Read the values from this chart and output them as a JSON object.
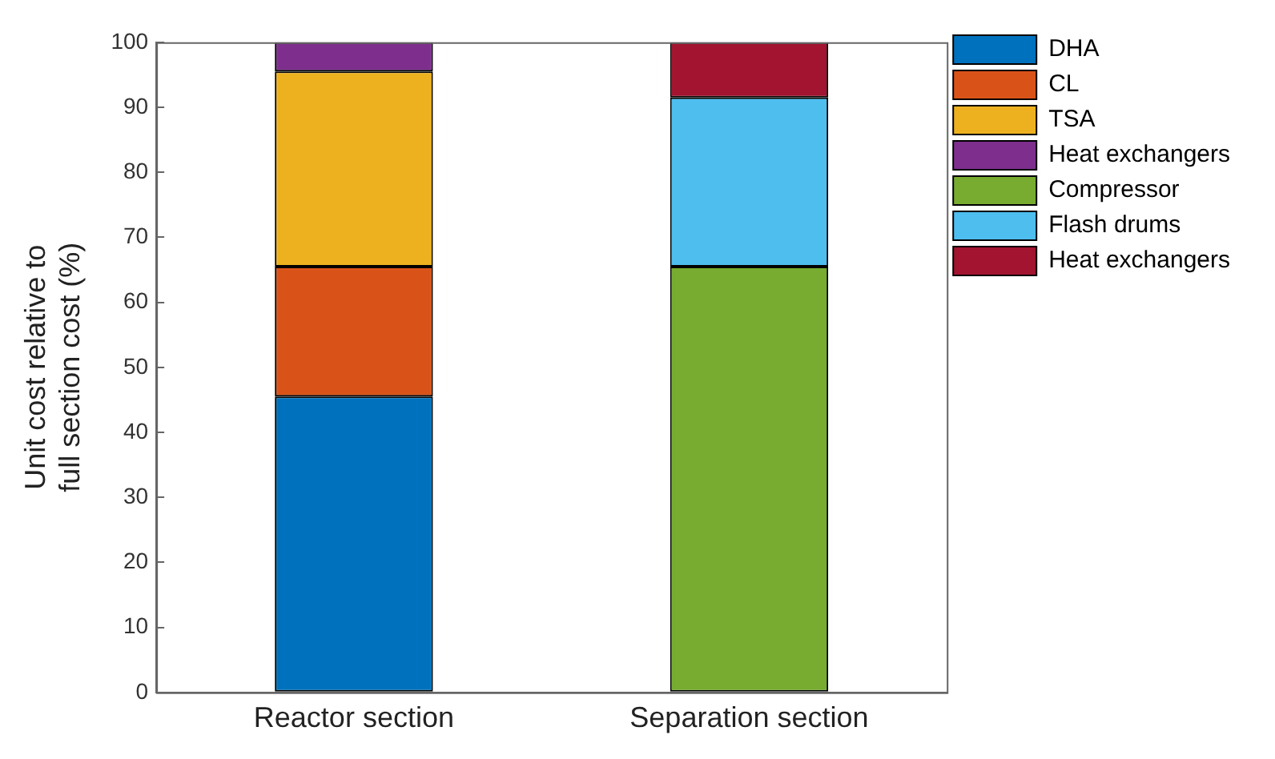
{
  "chart_data": {
    "type": "bar",
    "stacked": true,
    "ylabel": "Unit cost relative to\nfull section cost (%)",
    "categories": [
      "Reactor section",
      "Separation section"
    ],
    "series": [
      {
        "name": "DHA",
        "color": "#0072bd",
        "values": [
          45.5,
          null
        ]
      },
      {
        "name": "CL",
        "color": "#d95319",
        "values": [
          20,
          null
        ]
      },
      {
        "name": "TSA",
        "color": "#edb120",
        "values": [
          30,
          null
        ]
      },
      {
        "name": "Heat exchangers",
        "color": "#7e2f8e",
        "values": [
          4.5,
          null
        ]
      },
      {
        "name": "Compressor",
        "color": "#77ac30",
        "values": [
          null,
          65.5
        ]
      },
      {
        "name": "Flash drums",
        "color": "#4dbeee",
        "values": [
          null,
          26
        ]
      },
      {
        "name": "Heat exchangers",
        "color": "#a2142f",
        "values": [
          null,
          8.5
        ]
      }
    ],
    "ylim": [
      0,
      100
    ],
    "yticks": [
      0,
      10,
      20,
      30,
      40,
      50,
      60,
      70,
      80,
      90,
      100
    ],
    "grid": false,
    "legend": "right"
  }
}
